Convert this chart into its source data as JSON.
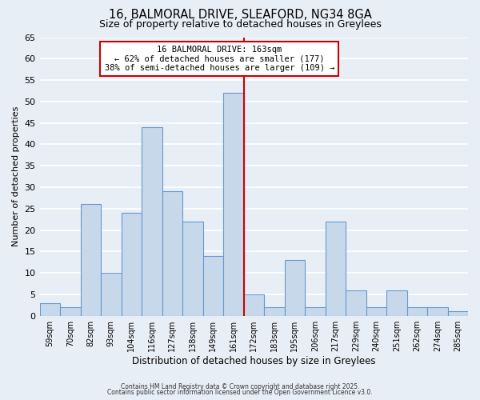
{
  "title": "16, BALMORAL DRIVE, SLEAFORD, NG34 8GA",
  "subtitle": "Size of property relative to detached houses in Greylees",
  "xlabel": "Distribution of detached houses by size in Greylees",
  "ylabel": "Number of detached properties",
  "bar_labels": [
    "59sqm",
    "70sqm",
    "82sqm",
    "93sqm",
    "104sqm",
    "116sqm",
    "127sqm",
    "138sqm",
    "149sqm",
    "161sqm",
    "172sqm",
    "183sqm",
    "195sqm",
    "206sqm",
    "217sqm",
    "229sqm",
    "240sqm",
    "251sqm",
    "262sqm",
    "274sqm",
    "285sqm"
  ],
  "counts": [
    3,
    2,
    26,
    10,
    24,
    44,
    29,
    22,
    14,
    52,
    5,
    2,
    13,
    2,
    22,
    6,
    2,
    6,
    2,
    2,
    1
  ],
  "bar_color": "#c8d8eb",
  "bar_edge_color": "#6699cc",
  "marker_index": 9,
  "marker_color": "#cc0000",
  "ylim": [
    0,
    65
  ],
  "yticks": [
    0,
    5,
    10,
    15,
    20,
    25,
    30,
    35,
    40,
    45,
    50,
    55,
    60,
    65
  ],
  "annotation_title": "16 BALMORAL DRIVE: 163sqm",
  "annotation_line1": "← 62% of detached houses are smaller (177)",
  "annotation_line2": "38% of semi-detached houses are larger (109) →",
  "annotation_box_color": "#cc0000",
  "footer1": "Contains HM Land Registry data © Crown copyright and database right 2025.",
  "footer2": "Contains public sector information licensed under the Open Government Licence v3.0.",
  "background_color": "#e8eef5",
  "grid_color": "#ffffff"
}
